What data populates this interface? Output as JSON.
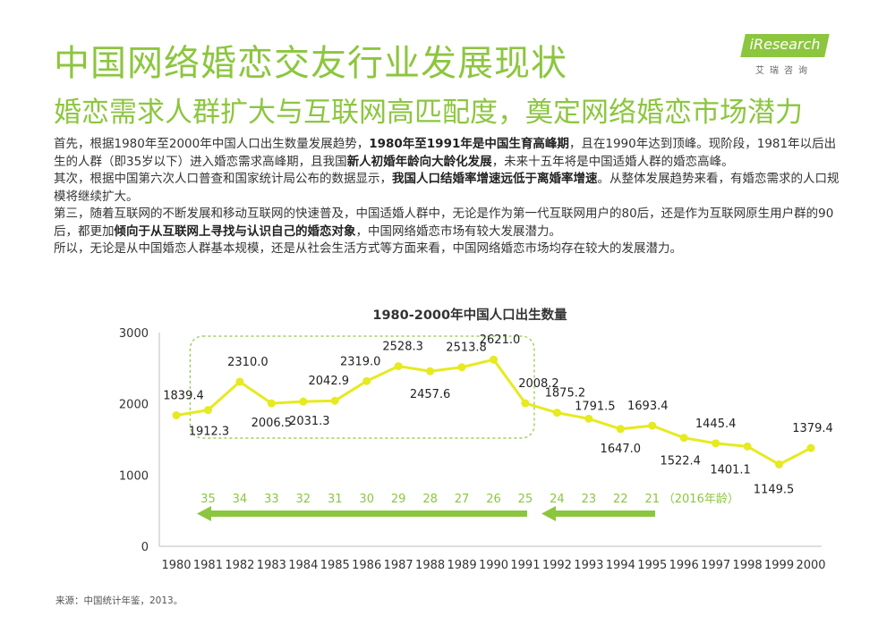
{
  "header": {
    "title": "中国网络婚恋交友行业发展现状",
    "subtitle": "婚恋需求人群扩大与互联网高匹配度，奠定网络婚恋市场潜力"
  },
  "logo": {
    "text": "iResearch",
    "sub": "艾瑞咨询"
  },
  "paragraphs": [
    {
      "p1_a": "首先，根据1980年至2000年中国人口出生数量发展趋势，",
      "p1_b": "1980年至1991年是中国生育高峰期",
      "p1_c": "，且在1990年达到顶峰。现阶段，1981年以后出生的人群（即35岁以下）进入婚恋需求高峰期，且我国",
      "p1_d": "新人初婚年龄向大龄化发展",
      "p1_e": "，未来十五年将是中国适婚人群的婚恋高峰。"
    },
    {
      "p2_a": "其次，根据中国第六次人口普查和国家统计局公布的数据显示，",
      "p2_b": "我国人口结婚率增速远低于离婚率增速",
      "p2_c": "。从整体发展趋势来看，有婚恋需求的人口规模将继续扩大。"
    },
    {
      "p3_a": "第三，随着互联网的不断发展和移动互联网的快速普及，中国适婚人群中，无论是作为第一代互联网用户的80后，还是作为互联网原生用户群的90后，都更加",
      "p3_b": "倾向于从互联网上寻找与认识自己的婚恋对象",
      "p3_c": "，中国网络婚恋市场有较大发展潜力。"
    },
    {
      "p4_a": "所以，无论是从中国婚恋人群基本规模，还是从社会生活方式等方面来看，中国网络婚恋市场均存在较大的发展潜力。"
    }
  ],
  "source": "来源：中国统计年鉴，2013。",
  "colors": {
    "accent": "#8cc63f",
    "line": "#e6ea1f",
    "arrow": "#8cc63f"
  },
  "chart_data": {
    "type": "line",
    "title": "1980-2000年中国人口出生数量",
    "x": [
      1980,
      1981,
      1982,
      1983,
      1984,
      1985,
      1986,
      1987,
      1988,
      1989,
      1990,
      1991,
      1992,
      1993,
      1994,
      1995,
      1996,
      1997,
      1998,
      1999,
      2000
    ],
    "x_labels": [
      "1980",
      "1981",
      "1982",
      "1983",
      "1984",
      "1985",
      "1986",
      "1987",
      "1988",
      "1989",
      "1990",
      "1991",
      "1992",
      "1993",
      "1994",
      "1995",
      "1996",
      "1997",
      "1998",
      "1999",
      "2000"
    ],
    "values": [
      1839.4,
      1912.3,
      2310.0,
      2006.5,
      2031.3,
      2042.9,
      2319.0,
      2528.3,
      2457.6,
      2513.8,
      2621.0,
      2008.2,
      1875.2,
      1791.5,
      1647.0,
      1693.4,
      1522.4,
      1445.4,
      1401.1,
      1149.5,
      1379.4
    ],
    "value_labels": [
      "1839.4",
      "1912.3",
      "2310.0",
      "2006.5",
      "2031.3",
      "2042.9",
      "2319.0",
      "2528.3",
      "2457.6",
      "2513.8",
      "2621.0",
      "2008.2",
      "1875.2",
      "1791.5",
      "1647.0",
      "1693.4",
      "1522.4",
      "1445.4",
      "1401.1",
      "1149.5",
      "1379.4"
    ],
    "ylim": [
      0,
      3000
    ],
    "yticks": [
      "0",
      "1000",
      "2000",
      "3000"
    ],
    "ages": [
      "35",
      "34",
      "33",
      "32",
      "31",
      "30",
      "29",
      "28",
      "27",
      "26",
      "25",
      "24",
      "23",
      "22",
      "21"
    ],
    "age_note": "（2016年龄）",
    "highlight_range": [
      1981,
      1991
    ],
    "grid": false,
    "legend": "none"
  }
}
